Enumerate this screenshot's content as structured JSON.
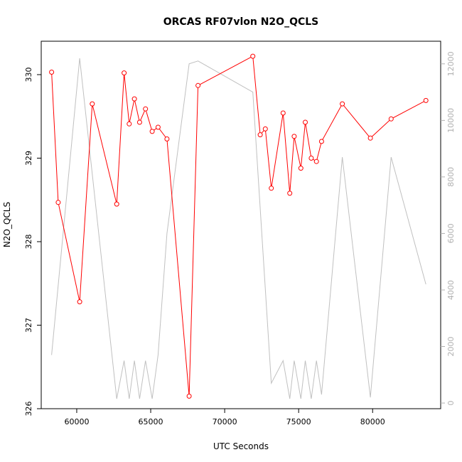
{
  "chart_data": {
    "type": "line",
    "title": "ORCAS RF07vlon N2O_QCLS",
    "xlabel": "UTC Seconds",
    "ylabel": "N2O_QCLS",
    "xlim": [
      57600,
      84600
    ],
    "ylim": [
      326,
      330.4
    ],
    "y2lim": [
      -200,
      12800
    ],
    "x_ticks": [
      60000,
      65000,
      70000,
      75000,
      80000
    ],
    "y_ticks": [
      326,
      327,
      328,
      329,
      330
    ],
    "y2_ticks": [
      0,
      2000,
      4000,
      6000,
      8000,
      10000,
      12000
    ],
    "grid": false,
    "colors": {
      "primary": "#ff0000",
      "secondary": "#c0c0c0"
    },
    "series": [
      {
        "axis": "left",
        "style": "line-points",
        "x": [
          58300,
          58750,
          60200,
          61050,
          62700,
          63200,
          63550,
          63900,
          64250,
          64650,
          65100,
          65500,
          66100,
          67600,
          68200,
          71900,
          72400,
          72750,
          73150,
          73950,
          74400,
          74700,
          75150,
          75450,
          75850,
          76200,
          76550,
          77950,
          79850,
          81250,
          83600
        ],
        "values": [
          330.03,
          328.47,
          327.28,
          329.65,
          328.45,
          330.02,
          329.41,
          329.71,
          329.43,
          329.59,
          329.32,
          329.37,
          329.23,
          326.15,
          329.87,
          330.22,
          329.28,
          329.35,
          328.64,
          329.54,
          328.58,
          329.26,
          328.88,
          329.43,
          329.0,
          328.96,
          329.2,
          329.65,
          329.24,
          329.47,
          329.69
        ]
      },
      {
        "axis": "right",
        "style": "line",
        "x": [
          58300,
          60200,
          62700,
          63200,
          63550,
          63900,
          64250,
          64650,
          65100,
          65500,
          66100,
          67600,
          68200,
          71900,
          73150,
          73950,
          74400,
          74700,
          75150,
          75450,
          75850,
          76200,
          76550,
          77950,
          79850,
          81250,
          83600
        ],
        "values": [
          1700,
          12200,
          150,
          1500,
          150,
          1500,
          150,
          1500,
          150,
          1700,
          6000,
          12000,
          12100,
          11000,
          700,
          1500,
          150,
          1500,
          150,
          1500,
          150,
          1500,
          300,
          8700,
          200,
          8700,
          4200
        ]
      }
    ]
  }
}
